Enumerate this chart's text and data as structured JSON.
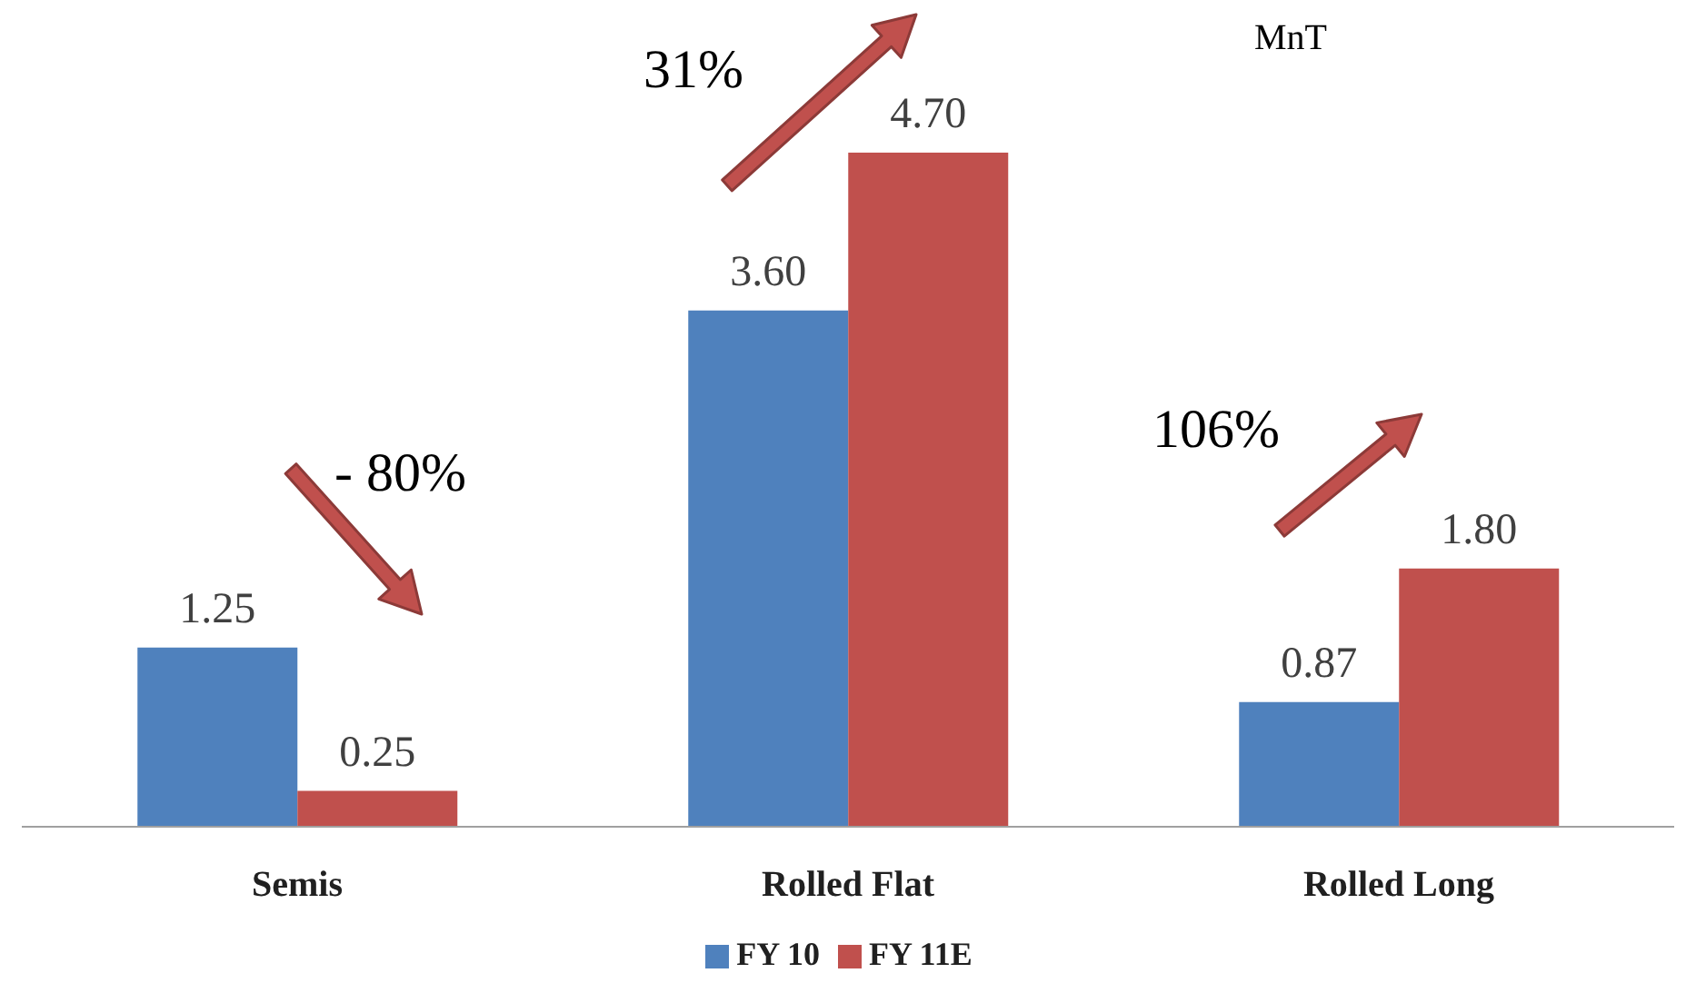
{
  "chart_data": {
    "type": "bar",
    "categories": [
      "Semis",
      "Rolled Flat",
      "Rolled Long"
    ],
    "series": [
      {
        "name": "FY 10",
        "color": "#4f81bd",
        "values": [
          1.25,
          3.6,
          0.87
        ],
        "value_labels": [
          "1.25",
          "3.60",
          "0.87"
        ]
      },
      {
        "name": "FY 11E",
        "color": "#c0504d",
        "values": [
          0.25,
          4.7,
          1.8
        ],
        "value_labels": [
          "0.25",
          "4.70",
          "1.80"
        ]
      }
    ],
    "annotations": [
      "MnT",
      "31%",
      "- 80%",
      "106%"
    ],
    "legend": "bottom",
    "grid": false
  }
}
